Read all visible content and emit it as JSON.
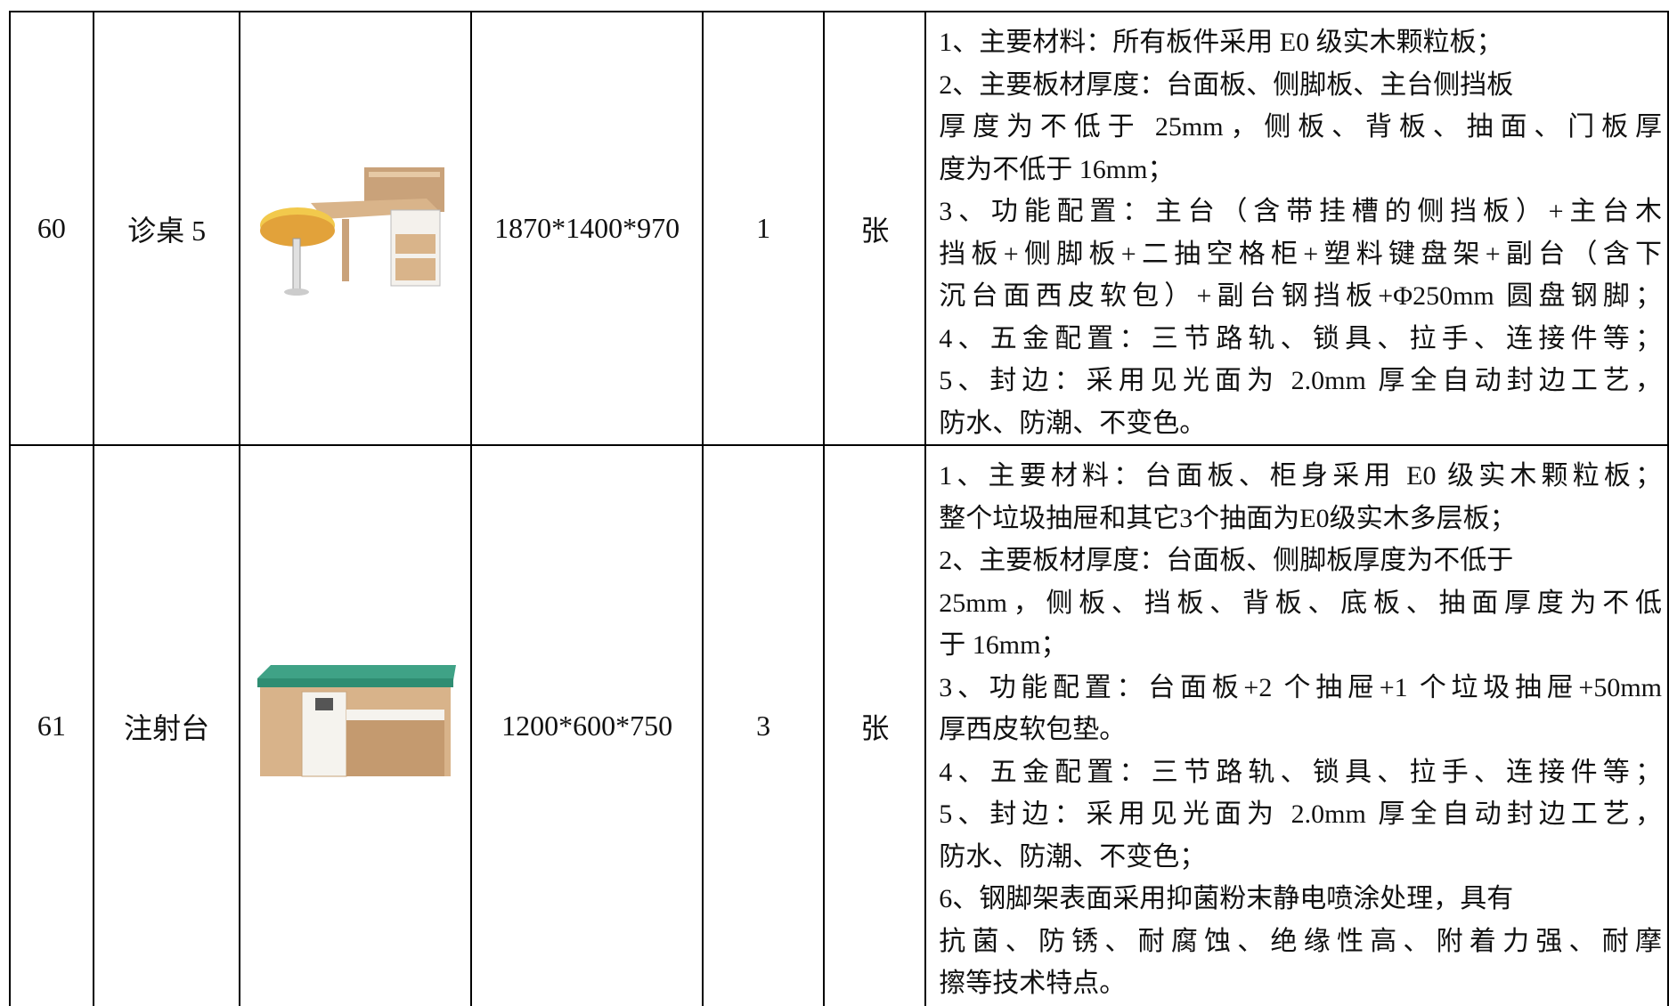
{
  "table": {
    "rows": [
      {
        "no": "60",
        "name": "诊桌 5",
        "size": "1870*1400*970",
        "qty": "1",
        "unit": "张",
        "desc": [
          "1、主要材料：所有板件采用 E0 级实木颗粒板；",
          "2、主要板材厚度：台面板、侧脚板、主台侧挡板",
          "厚度为不低于 25mm，侧板、背板、抽面、门板厚",
          "度为不低于 16mm；",
          "3、功能配置：主台（含带挂槽的侧挡板）+主台木",
          "挡板+侧脚板+二抽空格柜+塑料键盘架+副台（含下",
          "沉台面西皮软包）+副台钢挡板+Φ250mm 圆盘钢脚；",
          "4、五金配置：三节路轨、锁具、拉手、连接件等；",
          "5、封边：采用见光面为 2.0mm 厚全自动封边工艺，",
          "防水、防潮、不变色。"
        ]
      },
      {
        "no": "61",
        "name": "注射台",
        "size": "1200*600*750",
        "qty": "3",
        "unit": "张",
        "desc": [
          "1、主要材料：台面板、柜身采用 E0 级实木颗粒板；",
          "整个垃圾抽屉和其它3个抽面为E0级实木多层板；",
          "2、主要板材厚度：台面板、侧脚板厚度为不低于",
          "25mm，侧板、挡板、背板、底板、抽面厚度为不低",
          "于 16mm；",
          "3、功能配置：台面板+2 个抽屉+1 个垃圾抽屉+50mm",
          "厚西皮软包垫。",
          "4、五金配置：三节路轨、锁具、拉手、连接件等；",
          "5、封边：采用见光面为 2.0mm 厚全自动封边工艺，",
          "防水、防潮、不变色；",
          "6、钢脚架表面采用抑菌粉末静电喷涂处理，具有",
          "抗菌、防锈、耐腐蚀、绝缘性高、附着力强、耐摩",
          "擦等技术特点。"
        ]
      }
    ]
  }
}
